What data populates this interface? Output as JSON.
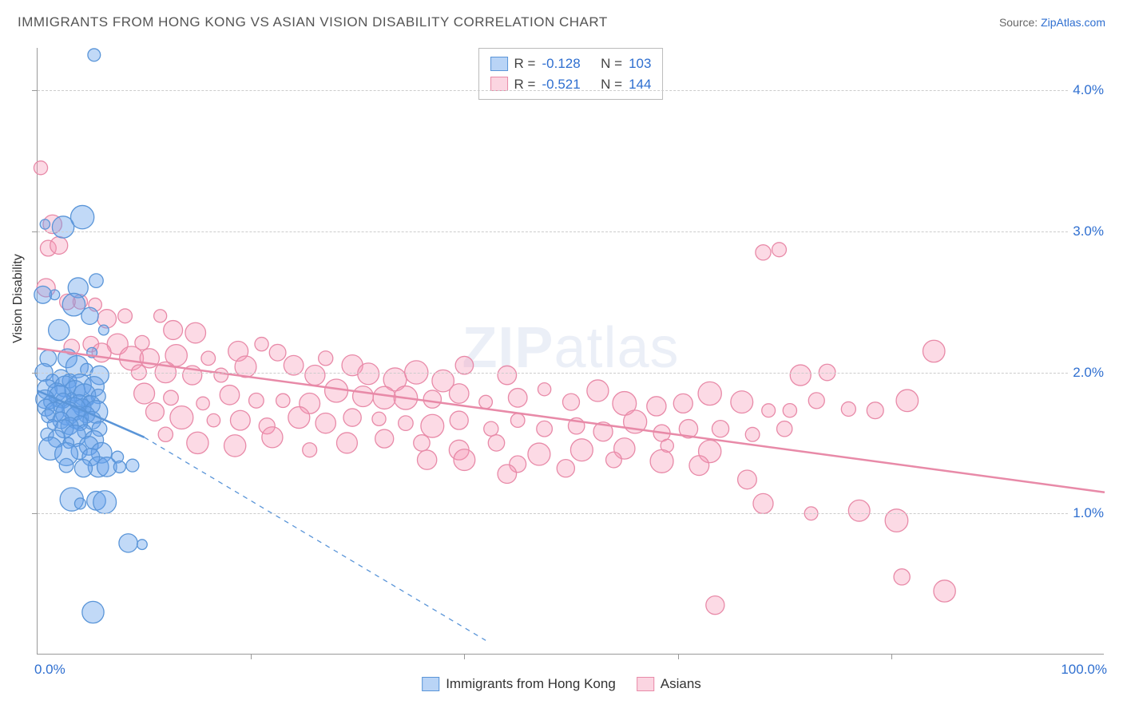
{
  "title": "IMMIGRANTS FROM HONG KONG VS ASIAN VISION DISABILITY CORRELATION CHART",
  "source_label": "Source:",
  "source_name": "ZipAtlas.com",
  "y_axis_title": "Vision Disability",
  "watermark_a": "ZIP",
  "watermark_b": "atlas",
  "chart": {
    "type": "scatter",
    "xlim": [
      0,
      100
    ],
    "ylim": [
      0,
      4.3
    ],
    "x_ticks": [
      20,
      40,
      60,
      80
    ],
    "y_ticks": [
      1.0,
      2.0,
      3.0,
      4.0
    ],
    "y_tick_labels": [
      "1.0%",
      "2.0%",
      "3.0%",
      "4.0%"
    ],
    "x_label_min": "0.0%",
    "x_label_max": "100.0%",
    "background_color": "#ffffff",
    "grid_color": "#cccccc",
    "axis_color": "#999999",
    "series": [
      {
        "name": "Immigrants from Hong Kong",
        "color_fill": "rgba(100,160,235,0.4)",
        "color_stroke": "#5a95d8",
        "r_value": "-0.128",
        "n_value": "103",
        "trend_solid": [
          [
            0,
            1.87
          ],
          [
            10,
            1.54
          ]
        ],
        "trend_dashed": [
          [
            10,
            1.54
          ],
          [
            42,
            0.1
          ]
        ],
        "marker_rmin": 6,
        "marker_rmax": 15,
        "points": [
          [
            5.3,
            4.25
          ],
          [
            0.7,
            3.05
          ],
          [
            4.2,
            3.1
          ],
          [
            2.4,
            3.03
          ],
          [
            3.8,
            2.6
          ],
          [
            1.6,
            2.55
          ],
          [
            0.5,
            2.55
          ],
          [
            5.5,
            2.65
          ],
          [
            3.4,
            2.48
          ],
          [
            4.9,
            2.4
          ],
          [
            2.0,
            2.3
          ],
          [
            6.2,
            2.3
          ],
          [
            5.1,
            2.14
          ],
          [
            1.0,
            2.1
          ],
          [
            2.8,
            2.1
          ],
          [
            3.7,
            2.04
          ],
          [
            0.6,
            2.0
          ],
          [
            4.6,
            2.02
          ],
          [
            5.8,
            1.98
          ],
          [
            2.2,
            1.96
          ],
          [
            3.0,
            1.94
          ],
          [
            1.4,
            1.94
          ],
          [
            4.0,
            1.91
          ],
          [
            5.3,
            1.9
          ],
          [
            2.6,
            1.9
          ],
          [
            0.9,
            1.88
          ],
          [
            3.5,
            1.87
          ],
          [
            1.8,
            1.86
          ],
          [
            4.4,
            1.84
          ],
          [
            2.1,
            1.83
          ],
          [
            5.7,
            1.83
          ],
          [
            3.2,
            1.82
          ],
          [
            0.7,
            1.81
          ],
          [
            4.8,
            1.8
          ],
          [
            2.4,
            1.8
          ],
          [
            1.2,
            1.79
          ],
          [
            3.9,
            1.78
          ],
          [
            5.0,
            1.77
          ],
          [
            2.0,
            1.76
          ],
          [
            4.2,
            1.75
          ],
          [
            0.8,
            1.75
          ],
          [
            3.4,
            1.74
          ],
          [
            1.6,
            1.72
          ],
          [
            5.5,
            1.72
          ],
          [
            2.8,
            1.71
          ],
          [
            4.6,
            1.7
          ],
          [
            1.0,
            1.69
          ],
          [
            3.7,
            1.68
          ],
          [
            2.2,
            1.66
          ],
          [
            5.1,
            1.66
          ],
          [
            4.0,
            1.64
          ],
          [
            1.4,
            1.63
          ],
          [
            3.0,
            1.62
          ],
          [
            5.8,
            1.6
          ],
          [
            2.5,
            1.6
          ],
          [
            4.4,
            1.58
          ],
          [
            0.9,
            1.56
          ],
          [
            3.5,
            1.55
          ],
          [
            1.8,
            1.53
          ],
          [
            5.3,
            1.52
          ],
          [
            2.9,
            1.5
          ],
          [
            4.8,
            1.48
          ],
          [
            1.2,
            1.46
          ],
          [
            3.9,
            1.44
          ],
          [
            6.0,
            1.43
          ],
          [
            2.7,
            1.42
          ],
          [
            5.0,
            1.4
          ],
          [
            7.5,
            1.4
          ],
          [
            2.7,
            1.34
          ],
          [
            5.7,
            1.33
          ],
          [
            4.3,
            1.32
          ],
          [
            6.5,
            1.33
          ],
          [
            7.7,
            1.33
          ],
          [
            8.9,
            1.34
          ],
          [
            3.2,
            1.1
          ],
          [
            5.5,
            1.09
          ],
          [
            4.0,
            1.07
          ],
          [
            6.3,
            1.08
          ],
          [
            8.5,
            0.79
          ],
          [
            9.8,
            0.78
          ],
          [
            5.2,
            0.3
          ]
        ]
      },
      {
        "name": "Asians",
        "color_fill": "rgba(245,150,180,0.35)",
        "color_stroke": "#e88aa8",
        "r_value": "-0.521",
        "n_value": "144",
        "trend_solid": [
          [
            0,
            2.17
          ],
          [
            100,
            1.15
          ]
        ],
        "marker_rmin": 8,
        "marker_rmax": 15,
        "points": [
          [
            0.3,
            3.45
          ],
          [
            1.4,
            3.05
          ],
          [
            1.0,
            2.88
          ],
          [
            2.0,
            2.9
          ],
          [
            0.8,
            2.6
          ],
          [
            5.4,
            2.48
          ],
          [
            4.0,
            2.5
          ],
          [
            2.8,
            2.5
          ],
          [
            8.2,
            2.4
          ],
          [
            6.5,
            2.38
          ],
          [
            11.5,
            2.4
          ],
          [
            12.7,
            2.3
          ],
          [
            3.2,
            2.18
          ],
          [
            5.0,
            2.2
          ],
          [
            7.5,
            2.2
          ],
          [
            9.8,
            2.21
          ],
          [
            14.8,
            2.28
          ],
          [
            8.8,
            2.1
          ],
          [
            6.0,
            2.14
          ],
          [
            10.5,
            2.1
          ],
          [
            13.0,
            2.12
          ],
          [
            16.0,
            2.1
          ],
          [
            18.8,
            2.15
          ],
          [
            21.0,
            2.2
          ],
          [
            19.5,
            2.04
          ],
          [
            24.0,
            2.05
          ],
          [
            22.5,
            2.14
          ],
          [
            27.0,
            2.1
          ],
          [
            9.5,
            2.0
          ],
          [
            12.0,
            2.0
          ],
          [
            14.5,
            1.98
          ],
          [
            17.2,
            1.98
          ],
          [
            26.0,
            1.98
          ],
          [
            29.5,
            2.05
          ],
          [
            31.0,
            1.99
          ],
          [
            33.5,
            1.95
          ],
          [
            35.5,
            2.0
          ],
          [
            38.0,
            1.94
          ],
          [
            40.0,
            2.05
          ],
          [
            44.0,
            1.98
          ],
          [
            68.0,
            2.85
          ],
          [
            69.5,
            2.87
          ],
          [
            84.0,
            2.15
          ],
          [
            71.5,
            1.98
          ],
          [
            74.0,
            2.0
          ],
          [
            10.0,
            1.85
          ],
          [
            12.5,
            1.82
          ],
          [
            15.5,
            1.78
          ],
          [
            18.0,
            1.84
          ],
          [
            20.5,
            1.8
          ],
          [
            23.0,
            1.8
          ],
          [
            25.5,
            1.78
          ],
          [
            28.0,
            1.87
          ],
          [
            30.5,
            1.83
          ],
          [
            32.5,
            1.82
          ],
          [
            34.5,
            1.82
          ],
          [
            37.0,
            1.81
          ],
          [
            39.5,
            1.85
          ],
          [
            42.0,
            1.79
          ],
          [
            45.0,
            1.82
          ],
          [
            47.5,
            1.88
          ],
          [
            50.0,
            1.79
          ],
          [
            52.5,
            1.87
          ],
          [
            55.0,
            1.78
          ],
          [
            58.0,
            1.76
          ],
          [
            60.5,
            1.78
          ],
          [
            63.0,
            1.85
          ],
          [
            66.0,
            1.79
          ],
          [
            68.5,
            1.73
          ],
          [
            70.5,
            1.73
          ],
          [
            73.0,
            1.8
          ],
          [
            76.0,
            1.74
          ],
          [
            78.5,
            1.73
          ],
          [
            81.5,
            1.8
          ],
          [
            11.0,
            1.72
          ],
          [
            13.5,
            1.68
          ],
          [
            16.5,
            1.66
          ],
          [
            19.0,
            1.66
          ],
          [
            21.5,
            1.62
          ],
          [
            24.5,
            1.68
          ],
          [
            27.0,
            1.64
          ],
          [
            29.5,
            1.68
          ],
          [
            32.0,
            1.67
          ],
          [
            34.5,
            1.64
          ],
          [
            37.0,
            1.62
          ],
          [
            39.5,
            1.66
          ],
          [
            42.5,
            1.6
          ],
          [
            45.0,
            1.66
          ],
          [
            47.5,
            1.6
          ],
          [
            50.5,
            1.62
          ],
          [
            53.0,
            1.58
          ],
          [
            56.0,
            1.65
          ],
          [
            58.5,
            1.57
          ],
          [
            61.0,
            1.6
          ],
          [
            64.0,
            1.6
          ],
          [
            67.0,
            1.56
          ],
          [
            70.0,
            1.6
          ],
          [
            12.0,
            1.56
          ],
          [
            15.0,
            1.5
          ],
          [
            18.5,
            1.48
          ],
          [
            22.0,
            1.54
          ],
          [
            25.5,
            1.45
          ],
          [
            29.0,
            1.5
          ],
          [
            32.5,
            1.53
          ],
          [
            36.0,
            1.5
          ],
          [
            39.5,
            1.45
          ],
          [
            43.0,
            1.5
          ],
          [
            47.0,
            1.42
          ],
          [
            51.0,
            1.45
          ],
          [
            55.0,
            1.46
          ],
          [
            59.0,
            1.48
          ],
          [
            63.0,
            1.44
          ],
          [
            36.5,
            1.38
          ],
          [
            40.0,
            1.38
          ],
          [
            45.0,
            1.35
          ],
          [
            49.5,
            1.32
          ],
          [
            54.0,
            1.38
          ],
          [
            58.5,
            1.37
          ],
          [
            62.0,
            1.34
          ],
          [
            44.0,
            1.28
          ],
          [
            66.5,
            1.24
          ],
          [
            68.0,
            1.07
          ],
          [
            72.5,
            1.0
          ],
          [
            77.0,
            1.02
          ],
          [
            80.5,
            0.95
          ],
          [
            81.0,
            0.55
          ],
          [
            63.5,
            0.35
          ],
          [
            85.0,
            0.45
          ]
        ]
      }
    ]
  },
  "legend": {
    "r_label": "R =",
    "n_label": "N ="
  },
  "bottom_legend": [
    "Immigrants from Hong Kong",
    "Asians"
  ]
}
